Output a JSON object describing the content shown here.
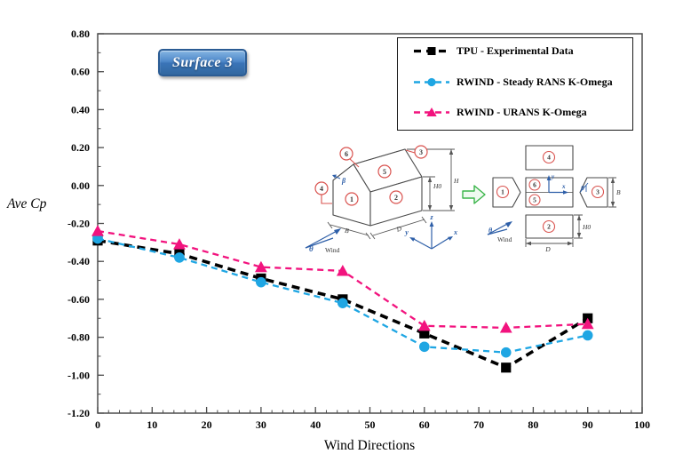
{
  "badge": {
    "label": "Surface 3"
  },
  "labels": {
    "ylabel": "Ave Cp",
    "xlabel": "Wind Directions"
  },
  "legend": {
    "position": "top-right",
    "entries": [
      {
        "label": "TPU - Experimental Data",
        "color": "#000000",
        "marker": "square"
      },
      {
        "label": "RWIND - Steady RANS K-Omega",
        "color": "#1fa6e3",
        "marker": "circle"
      },
      {
        "label": "RWIND - URANS K-Omega",
        "color": "#f2137e",
        "marker": "triangle"
      }
    ]
  },
  "chart_data": {
    "type": "line",
    "title": "Surface 3",
    "xlabel": "Wind Directions",
    "ylabel": "Ave Cp",
    "x": [
      0,
      15,
      30,
      45,
      60,
      75,
      90
    ],
    "series": [
      {
        "name": "TPU - Experimental Data",
        "marker": "square",
        "color": "#000000",
        "dash": "9 6",
        "width": 3.6,
        "values": [
          -0.29,
          -0.36,
          -0.49,
          -0.6,
          -0.78,
          -0.96,
          -0.7
        ]
      },
      {
        "name": "RWIND - Steady RANS K-Omega",
        "marker": "circle",
        "color": "#1fa6e3",
        "dash": "7 5",
        "width": 2.3,
        "values": [
          -0.28,
          -0.38,
          -0.51,
          -0.62,
          -0.85,
          -0.88,
          -0.79
        ]
      },
      {
        "name": "RWIND - URANS K-Omega",
        "marker": "triangle",
        "color": "#f2137e",
        "dash": "7 5",
        "width": 2.3,
        "values": [
          -0.24,
          -0.31,
          -0.43,
          -0.45,
          -0.74,
          -0.75,
          -0.73
        ]
      }
    ],
    "xlim": [
      0,
      100
    ],
    "ylim": [
      -1.2,
      0.8
    ],
    "x_major_ticks": [
      0,
      10,
      20,
      30,
      40,
      50,
      60,
      70,
      80,
      90,
      100
    ],
    "y_major_ticks": [
      0.8,
      0.6,
      0.4,
      0.2,
      0.0,
      -0.2,
      -0.4,
      -0.6,
      -0.8,
      -1.0,
      -1.2
    ],
    "x_minor_step": 2,
    "y_minor_step": 0.1,
    "grid": false,
    "legend_position": "top-right"
  },
  "inset_house": {
    "n1": "1",
    "n2": "2",
    "n3": "3",
    "n4": "4",
    "n5": "5",
    "n6": "6",
    "beta": "β",
    "theta": "θ",
    "wind": "Wind",
    "dim_b": "B",
    "dim_d": "D",
    "dim_h0": "H0",
    "dim_h": "H",
    "ax_x": "x",
    "ax_y": "y",
    "ax_z": "z"
  },
  "inset_flat": {
    "n1": "1",
    "n2": "2",
    "n3": "3",
    "n4": "4",
    "n5": "5",
    "n6": "6",
    "beta": "β",
    "theta": "θ",
    "wind": "Wind",
    "dim_b": "B",
    "dim_d": "D",
    "dim_h0": "H0",
    "ax_x": "x",
    "ax_y": "y"
  }
}
